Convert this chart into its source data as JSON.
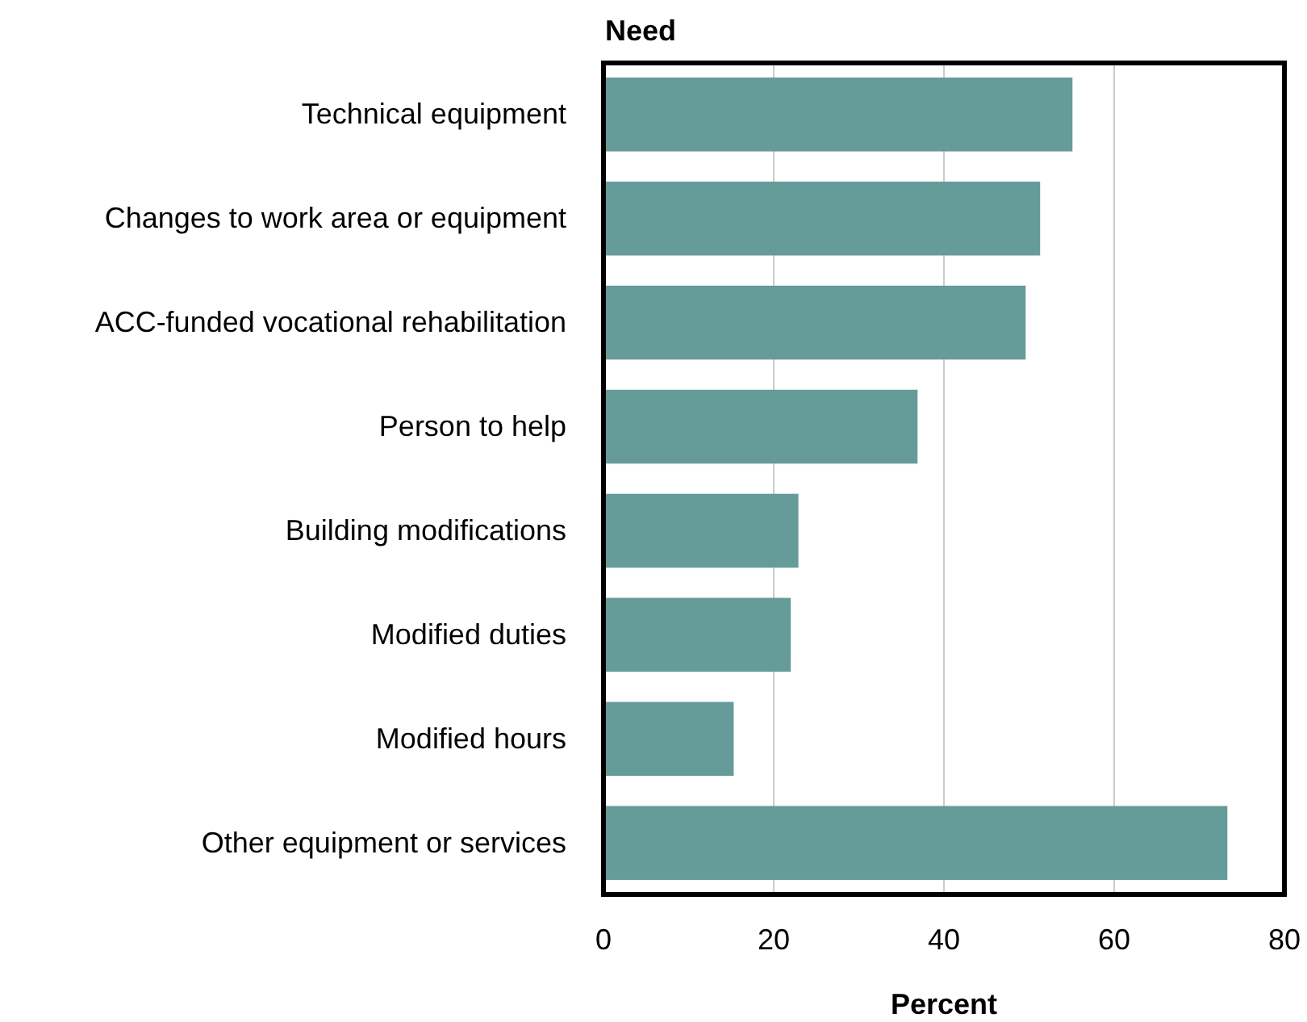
{
  "chart_data": {
    "type": "bar",
    "orientation": "horizontal",
    "ylabel": "Need",
    "xlabel": "Percent",
    "categories": [
      "Technical equipment",
      "Changes to work area or equipment",
      "ACC-funded vocational rehabilitation",
      "Person to help",
      "Building modifications",
      "Modified duties",
      "Modified hours",
      "Other equipment or services"
    ],
    "values": [
      55.1,
      51.3,
      49.6,
      36.9,
      22.9,
      22.0,
      15.3,
      73.3
    ],
    "color": "#659b99",
    "xlim": [
      0,
      80
    ],
    "xticks": [
      0,
      20,
      40,
      60,
      80
    ],
    "grid": "x"
  }
}
